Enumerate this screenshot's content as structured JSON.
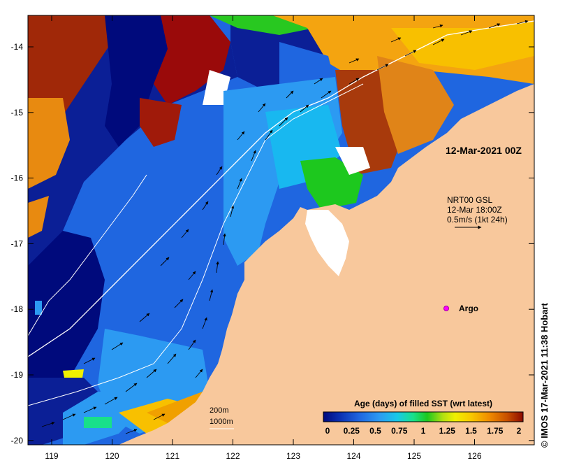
{
  "map": {
    "date_label": "12-Mar-2021 00Z",
    "current_source": "NRT00 GSL",
    "current_time": "12-Mar 18:00Z",
    "current_scale": "0.5m/s (1kt 24h)",
    "argo_label": "Argo",
    "isobath_200": "200m",
    "isobath_1000": "1000m",
    "credit": "© IMOS 17-Mar-2021 11:38 Hobart",
    "lon_ticks": [
      "119",
      "120",
      "121",
      "122",
      "123",
      "124",
      "125",
      "126"
    ],
    "lat_ticks": [
      "-14",
      "-15",
      "-16",
      "-17",
      "-18",
      "-19",
      "-20"
    ],
    "land_color": "#f8c89c",
    "stale_color": "#ffffff"
  },
  "colorbar": {
    "title": "Age (days) of filled SST (wrt latest)",
    "ticks": [
      "0",
      "0.25",
      "0.5",
      "0.75",
      "1",
      "1.25",
      "1.5",
      "1.75",
      "2"
    ],
    "colors": [
      "#000a7c",
      "#0a2fb0",
      "#1f66e0",
      "#2c9af2",
      "#18c8e8",
      "#18e08a",
      "#1dc81e",
      "#b4e010",
      "#f0f000",
      "#f8c800",
      "#f08c00",
      "#c85000",
      "#8c0a00"
    ]
  }
}
